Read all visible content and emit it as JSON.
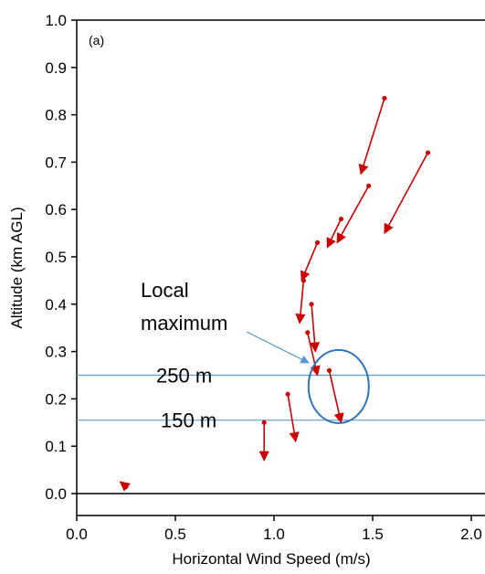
{
  "chart_data": {
    "type": "scatter",
    "panel_label": "(a)",
    "xlabel": "Horizontal Wind Speed (m/s)",
    "ylabel": "Altitude (km AGL)",
    "xlim": [
      0.0,
      2.0
    ],
    "ylim": [
      -0.05,
      1.0
    ],
    "xticks": [
      "0.0",
      "0.5",
      "1.0",
      "1.5",
      "2.0"
    ],
    "yticks": [
      "0.0",
      "0.1",
      "0.2",
      "0.3",
      "0.4",
      "0.5",
      "0.6",
      "0.7",
      "0.8",
      "0.9",
      "1.0"
    ],
    "points": [
      {
        "x": 0.25,
        "y": 0.015,
        "dx": -0.03,
        "dy": 0.01
      },
      {
        "x": 0.95,
        "y": 0.15,
        "dx": 0.0,
        "dy": -0.08
      },
      {
        "x": 1.07,
        "y": 0.21,
        "dx": 0.04,
        "dy": -0.1
      },
      {
        "x": 1.28,
        "y": 0.26,
        "dx": 0.06,
        "dy": -0.11
      },
      {
        "x": 1.17,
        "y": 0.34,
        "dx": 0.05,
        "dy": -0.09
      },
      {
        "x": 1.19,
        "y": 0.4,
        "dx": 0.02,
        "dy": -0.1
      },
      {
        "x": 1.15,
        "y": 0.45,
        "dx": -0.02,
        "dy": -0.09
      },
      {
        "x": 1.22,
        "y": 0.53,
        "dx": -0.08,
        "dy": -0.08
      },
      {
        "x": 1.34,
        "y": 0.58,
        "dx": -0.07,
        "dy": -0.06
      },
      {
        "x": 1.48,
        "y": 0.65,
        "dx": -0.16,
        "dy": -0.12
      },
      {
        "x": 1.78,
        "y": 0.72,
        "dx": -0.22,
        "dy": -0.17
      },
      {
        "x": 1.56,
        "y": 0.835,
        "dx": -0.12,
        "dy": -0.16
      }
    ],
    "reference_lines": [
      {
        "y": 0.25,
        "label": "250 m"
      },
      {
        "y": 0.155,
        "label": "150 m"
      }
    ],
    "annotation": {
      "text_line1": "Local",
      "text_line2": "maximum",
      "target_x": 1.3,
      "target_y": 0.23
    },
    "colors": {
      "arrows": "#cc0000",
      "reference_lines": "#5b9bd5",
      "circle": "#2e75b6",
      "axes": "#000000"
    }
  }
}
